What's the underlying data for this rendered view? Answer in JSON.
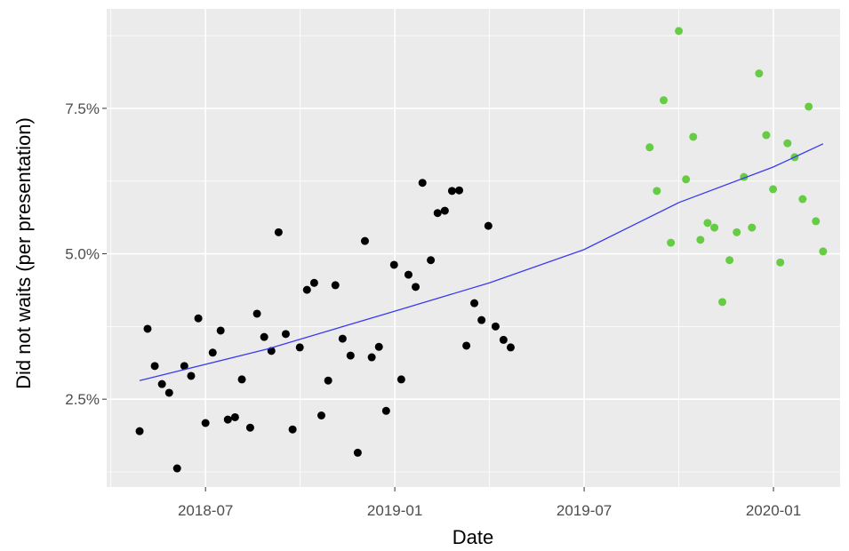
{
  "chart_data": {
    "type": "scatter",
    "xlabel": "Date",
    "ylabel": "Did not waits (per presentation)",
    "xlim": [
      2018.239,
      2020.176
    ],
    "xticks": [
      {
        "value": 2018.5,
        "label": "2018-07"
      },
      {
        "value": 2019.0,
        "label": "2019-01"
      },
      {
        "value": 2019.5,
        "label": "2019-07"
      },
      {
        "value": 2020.0,
        "label": "2020-01"
      }
    ],
    "xminor": [
      2018.25,
      2018.75,
      2019.25,
      2019.75
    ],
    "ylim": [
      0.99,
      9.21
    ],
    "yticks": [
      {
        "value": 2.5,
        "label": "2.5%"
      },
      {
        "value": 5.0,
        "label": "5.0%"
      },
      {
        "value": 7.5,
        "label": "7.5%"
      }
    ],
    "yminor": [
      1.25,
      3.75,
      6.25,
      8.75
    ],
    "grid": true,
    "series": [
      {
        "mode": "points",
        "color": "#000000",
        "x": [
          2018.326,
          2018.347,
          2018.366,
          2018.385,
          2018.404,
          2018.425,
          2018.444,
          2018.462,
          2018.481,
          2018.5,
          2018.519,
          2018.54,
          2018.559,
          2018.578,
          2018.596,
          2018.618,
          2018.636,
          2018.655,
          2018.674,
          2018.693,
          2018.712,
          2018.73,
          2018.749,
          2018.768,
          2018.787,
          2018.806,
          2018.824,
          2018.843,
          2018.862,
          2018.883,
          2018.902,
          2018.921,
          2018.939,
          2018.958,
          2018.977,
          2018.998,
          2019.017,
          2019.036,
          2019.055,
          2019.073,
          2019.095,
          2019.113,
          2019.132,
          2019.151,
          2019.17,
          2019.189,
          2019.21,
          2019.229,
          2019.247,
          2019.266,
          2019.287,
          2019.306
        ],
        "values": [
          1.95,
          3.71,
          3.07,
          2.76,
          2.61,
          1.31,
          3.07,
          2.9,
          3.89,
          2.09,
          3.3,
          3.68,
          2.15,
          2.19,
          2.84,
          2.01,
          3.97,
          3.57,
          3.33,
          5.37,
          3.62,
          1.98,
          3.39,
          4.38,
          4.5,
          2.22,
          2.82,
          4.46,
          3.54,
          3.25,
          1.58,
          5.22,
          3.22,
          3.4,
          2.3,
          4.81,
          2.84,
          4.64,
          4.43,
          6.22,
          4.89,
          5.7,
          5.74,
          6.08,
          6.09,
          3.42,
          4.15,
          3.86,
          5.48,
          3.75,
          3.52,
          3.39
        ]
      },
      {
        "mode": "points",
        "color": "#66cc44",
        "x": [
          2019.673,
          2019.692,
          2019.71,
          2019.729,
          2019.75,
          2019.769,
          2019.788,
          2019.807,
          2019.826,
          2019.844,
          2019.865,
          2019.884,
          2019.903,
          2019.922,
          2019.943,
          2019.962,
          2019.981,
          2019.999,
          2020.018,
          2020.037,
          2020.056,
          2020.077,
          2020.093,
          2020.112,
          2020.131
        ],
        "values": [
          6.83,
          6.08,
          7.64,
          5.19,
          8.83,
          6.28,
          7.01,
          5.24,
          5.53,
          5.45,
          4.17,
          4.89,
          5.37,
          6.32,
          5.45,
          8.1,
          7.04,
          6.11,
          4.85,
          6.9,
          6.66,
          5.94,
          7.53,
          5.56,
          5.04
        ]
      },
      {
        "mode": "line",
        "color": "#3a3af0",
        "x": [
          2018.326,
          2018.662,
          2018.998,
          2019.25,
          2019.499,
          2019.75,
          2019.999,
          2020.131
        ],
        "values": [
          2.82,
          3.36,
          4.01,
          4.5,
          5.07,
          5.88,
          6.49,
          6.89
        ]
      }
    ]
  }
}
